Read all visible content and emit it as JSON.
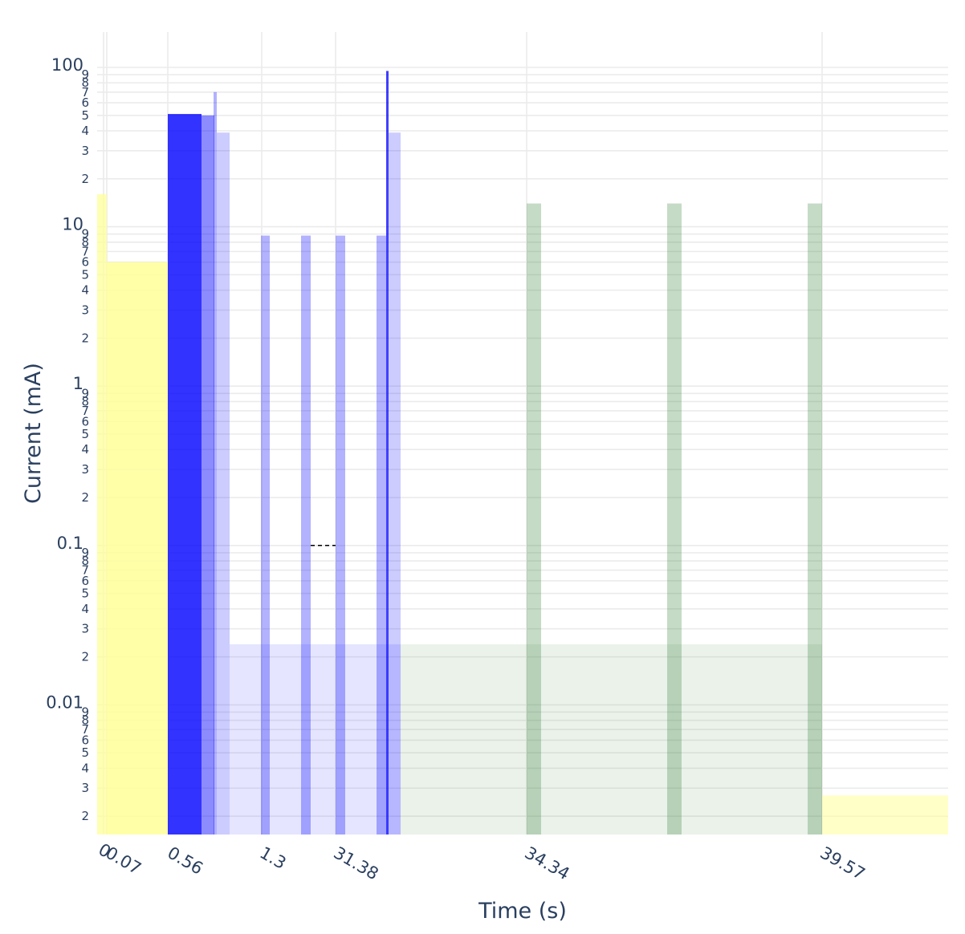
{
  "chart_data": {
    "type": "bar",
    "xlabel": "Time (s)",
    "ylabel": "Current (mA)",
    "yscale": "log",
    "ylim": [
      0.0015,
      160
    ],
    "grid": true,
    "x_tick_labels": [
      "0",
      "0.07",
      "0.56",
      "1.3",
      "31.38",
      "34.34",
      "39.57"
    ],
    "y_major_ticks": [
      {
        "value": 0.01,
        "label": "0.01"
      },
      {
        "value": 0.1,
        "label": "0.1"
      },
      {
        "value": 1,
        "label": "1"
      },
      {
        "value": 10,
        "label": "10"
      },
      {
        "value": 100,
        "label": "100"
      }
    ],
    "y_minor_digits": [
      "2",
      "3",
      "4",
      "5",
      "6",
      "7",
      "8",
      "9"
    ],
    "bars": [
      {
        "segment": "start",
        "value": 16,
        "color": "#ffff99",
        "opacity": 0.75
      },
      {
        "segment": "start",
        "value": 6,
        "color": "#ffff99",
        "opacity": 0.85
      },
      {
        "segment": "burst",
        "value": 51,
        "color": "#0000ff",
        "opacity": 0.8
      },
      {
        "segment": "burst",
        "value": 50,
        "color": "#0000ff",
        "opacity": 0.45
      },
      {
        "segment": "burst",
        "value": 70,
        "color": "#0000ff",
        "opacity": 0.3
      },
      {
        "segment": "burst",
        "value": 39,
        "color": "#0000ff",
        "opacity": 0.2
      },
      {
        "segment": "idle",
        "value": 0.024,
        "color": "#0000ff",
        "opacity": 0.1
      },
      {
        "segment": "idle",
        "value": 8.8,
        "color": "#0000ff",
        "opacity": 0.3
      },
      {
        "segment": "idle",
        "value": 8.8,
        "color": "#0000ff",
        "opacity": 0.3
      },
      {
        "segment": "idle",
        "value": 8.8,
        "color": "#0000ff",
        "opacity": 0.3
      },
      {
        "segment": "idle",
        "value": 8.8,
        "color": "#0000ff",
        "opacity": 0.3
      },
      {
        "segment": "spike",
        "value": 95,
        "color": "#0000ff",
        "opacity": 0.75
      },
      {
        "segment": "spike",
        "value": 39,
        "color": "#0000ff",
        "opacity": 0.2
      },
      {
        "segment": "sleep",
        "value": 0.024,
        "color": "#2e7d32",
        "opacity": 0.1
      },
      {
        "segment": "sleep",
        "value": 14,
        "color": "#2e7d32",
        "opacity": 0.28
      },
      {
        "segment": "sleep",
        "value": 14,
        "color": "#2e7d32",
        "opacity": 0.28
      },
      {
        "segment": "sleep",
        "value": 14,
        "color": "#2e7d32",
        "opacity": 0.28
      },
      {
        "segment": "end",
        "value": 0.0027,
        "color": "#ffff99",
        "opacity": 0.55
      }
    ],
    "annotation_line": {
      "value": 0.1,
      "style": "dashed",
      "color": "#000000"
    }
  }
}
